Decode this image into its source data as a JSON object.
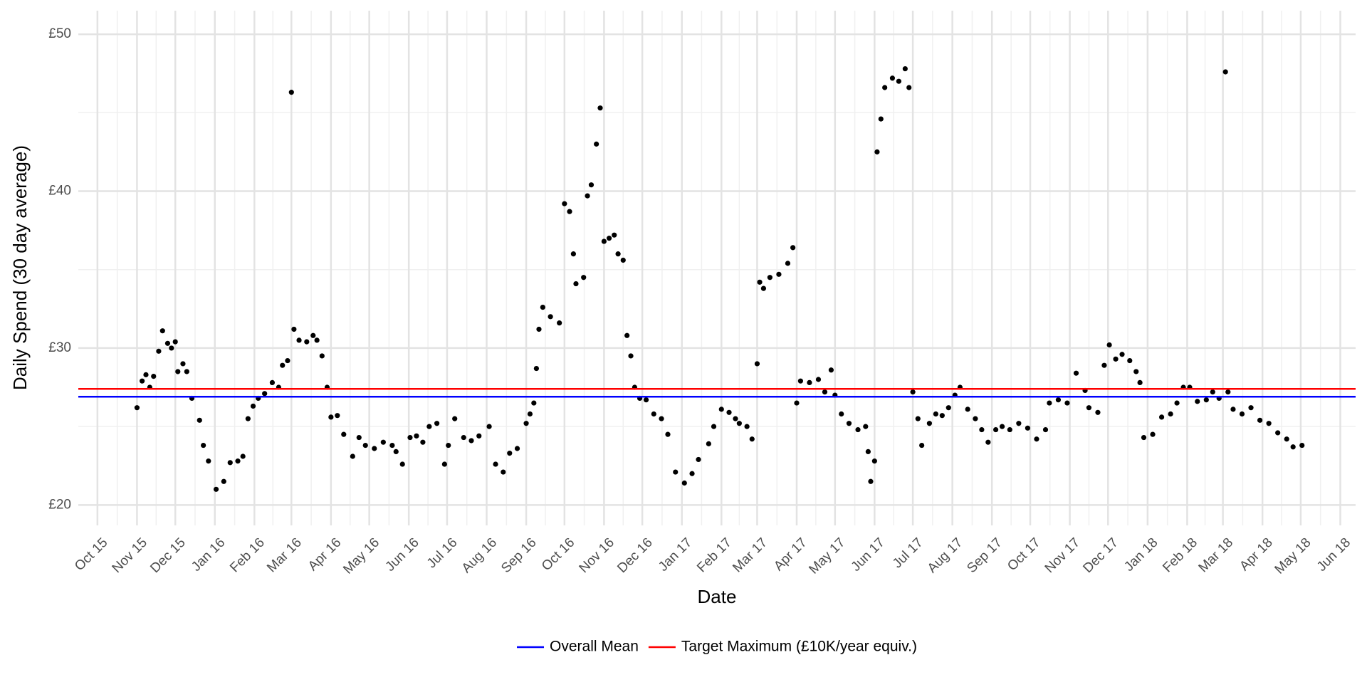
{
  "chart_data": {
    "type": "scatter",
    "x_label": "Date",
    "y_label": "Daily Spend (30 day average)",
    "color": "#000000",
    "grid": true,
    "legend": "bottom",
    "xlim": [
      "2015-09-16",
      "2018-06-13"
    ],
    "xticks": [
      {
        "value": "2015-10-01",
        "label": "Oct 15"
      },
      {
        "value": "2015-11-01",
        "label": "Nov 15"
      },
      {
        "value": "2015-12-01",
        "label": "Dec 15"
      },
      {
        "value": "2016-01-01",
        "label": "Jan 16"
      },
      {
        "value": "2016-02-01",
        "label": "Feb 16"
      },
      {
        "value": "2016-03-01",
        "label": "Mar 16"
      },
      {
        "value": "2016-04-01",
        "label": "Apr 16"
      },
      {
        "value": "2016-05-01",
        "label": "May 16"
      },
      {
        "value": "2016-06-01",
        "label": "Jun 16"
      },
      {
        "value": "2016-07-01",
        "label": "Jul 16"
      },
      {
        "value": "2016-08-01",
        "label": "Aug 16"
      },
      {
        "value": "2016-09-01",
        "label": "Sep 16"
      },
      {
        "value": "2016-10-01",
        "label": "Oct 16"
      },
      {
        "value": "2016-11-01",
        "label": "Nov 16"
      },
      {
        "value": "2016-12-01",
        "label": "Dec 16"
      },
      {
        "value": "2017-01-01",
        "label": "Jan 17"
      },
      {
        "value": "2017-02-01",
        "label": "Feb 17"
      },
      {
        "value": "2017-03-01",
        "label": "Mar 17"
      },
      {
        "value": "2017-04-01",
        "label": "Apr 17"
      },
      {
        "value": "2017-05-01",
        "label": "May 17"
      },
      {
        "value": "2017-06-01",
        "label": "Jun 17"
      },
      {
        "value": "2017-07-01",
        "label": "Jul 17"
      },
      {
        "value": "2017-08-01",
        "label": "Aug 17"
      },
      {
        "value": "2017-09-01",
        "label": "Sep 17"
      },
      {
        "value": "2017-10-01",
        "label": "Oct 17"
      },
      {
        "value": "2017-11-01",
        "label": "Nov 17"
      },
      {
        "value": "2017-12-01",
        "label": "Dec 17"
      },
      {
        "value": "2018-01-01",
        "label": "Jan 18"
      },
      {
        "value": "2018-02-01",
        "label": "Feb 18"
      },
      {
        "value": "2018-03-01",
        "label": "Mar 18"
      },
      {
        "value": "2018-04-01",
        "label": "Apr 18"
      },
      {
        "value": "2018-05-01",
        "label": "May 18"
      },
      {
        "value": "2018-06-01",
        "label": "Jun 18"
      }
    ],
    "ylim": [
      18.7,
      51.5
    ],
    "yticks": [
      {
        "value": 20,
        "label": "£20"
      },
      {
        "value": 30,
        "label": "£30"
      },
      {
        "value": 40,
        "label": "£40"
      },
      {
        "value": 50,
        "label": "£50"
      }
    ],
    "yminor": [
      25,
      35,
      45
    ],
    "hlines": [
      {
        "name": "Overall Mean",
        "color": "#0000ff",
        "value": 26.9
      },
      {
        "name": "Target Maximum (£10K/year equiv.)",
        "color": "#ff0000",
        "value": 27.4
      }
    ],
    "x": [
      "2015-11-01",
      "2015-11-05",
      "2015-11-08",
      "2015-11-11",
      "2015-11-14",
      "2015-11-18",
      "2015-11-21",
      "2015-11-25",
      "2015-11-28",
      "2015-12-01",
      "2015-12-03",
      "2015-12-07",
      "2015-12-10",
      "2015-12-14",
      "2015-12-20",
      "2015-12-23",
      "2015-12-27",
      "2016-01-02",
      "2016-01-08",
      "2016-01-13",
      "2016-01-19",
      "2016-01-23",
      "2016-01-27",
      "2016-01-31",
      "2016-02-04",
      "2016-02-09",
      "2016-02-15",
      "2016-02-20",
      "2016-02-23",
      "2016-02-27",
      "2016-03-01",
      "2016-03-03",
      "2016-03-07",
      "2016-03-13",
      "2016-03-18",
      "2016-03-21",
      "2016-03-25",
      "2016-03-29",
      "2016-04-01",
      "2016-04-06",
      "2016-04-11",
      "2016-04-18",
      "2016-04-23",
      "2016-04-28",
      "2016-05-05",
      "2016-05-12",
      "2016-05-19",
      "2016-05-22",
      "2016-05-27",
      "2016-06-02",
      "2016-06-07",
      "2016-06-12",
      "2016-06-17",
      "2016-06-23",
      "2016-06-29",
      "2016-07-02",
      "2016-07-07",
      "2016-07-14",
      "2016-07-20",
      "2016-07-26",
      "2016-08-03",
      "2016-08-08",
      "2016-08-14",
      "2016-08-19",
      "2016-08-25",
      "2016-09-01",
      "2016-09-04",
      "2016-09-07",
      "2016-09-09",
      "2016-09-11",
      "2016-09-14",
      "2016-09-20",
      "2016-09-27",
      "2016-10-01",
      "2016-10-05",
      "2016-10-08",
      "2016-10-10",
      "2016-10-16",
      "2016-10-19",
      "2016-10-22",
      "2016-10-26",
      "2016-10-29",
      "2016-11-01",
      "2016-11-05",
      "2016-11-09",
      "2016-11-12",
      "2016-11-16",
      "2016-11-19",
      "2016-11-22",
      "2016-11-25",
      "2016-11-29",
      "2016-12-04",
      "2016-12-10",
      "2016-12-16",
      "2016-12-21",
      "2016-12-27",
      "2017-01-03",
      "2017-01-09",
      "2017-01-14",
      "2017-01-22",
      "2017-01-26",
      "2017-02-01",
      "2017-02-07",
      "2017-02-12",
      "2017-02-15",
      "2017-02-21",
      "2017-02-25",
      "2017-03-01",
      "2017-03-03",
      "2017-03-06",
      "2017-03-11",
      "2017-03-18",
      "2017-03-25",
      "2017-03-29",
      "2017-04-01",
      "2017-04-04",
      "2017-04-11",
      "2017-04-18",
      "2017-04-23",
      "2017-04-28",
      "2017-05-01",
      "2017-05-06",
      "2017-05-12",
      "2017-05-19",
      "2017-05-25",
      "2017-05-27",
      "2017-05-29",
      "2017-06-01",
      "2017-06-03",
      "2017-06-06",
      "2017-06-09",
      "2017-06-15",
      "2017-06-20",
      "2017-06-25",
      "2017-06-28",
      "2017-07-01",
      "2017-07-05",
      "2017-07-08",
      "2017-07-14",
      "2017-07-19",
      "2017-07-24",
      "2017-07-29",
      "2017-08-03",
      "2017-08-07",
      "2017-08-13",
      "2017-08-19",
      "2017-08-24",
      "2017-08-29",
      "2017-09-04",
      "2017-09-09",
      "2017-09-15",
      "2017-09-22",
      "2017-09-29",
      "2017-10-06",
      "2017-10-13",
      "2017-10-16",
      "2017-10-23",
      "2017-10-30",
      "2017-11-06",
      "2017-11-13",
      "2017-11-16",
      "2017-11-23",
      "2017-11-28",
      "2017-12-02",
      "2017-12-07",
      "2017-12-12",
      "2017-12-18",
      "2017-12-23",
      "2017-12-26",
      "2017-12-29",
      "2018-01-05",
      "2018-01-12",
      "2018-01-19",
      "2018-01-24",
      "2018-01-29",
      "2018-02-03",
      "2018-02-09",
      "2018-02-16",
      "2018-02-21",
      "2018-02-26",
      "2018-03-03",
      "2018-03-05",
      "2018-03-09",
      "2018-03-16",
      "2018-03-23",
      "2018-03-30",
      "2018-04-06",
      "2018-04-13",
      "2018-04-20",
      "2018-04-25",
      "2018-05-02"
    ],
    "values": [
      26.2,
      27.9,
      28.3,
      27.5,
      28.2,
      29.8,
      31.1,
      30.3,
      30.0,
      30.4,
      28.5,
      29.0,
      28.5,
      26.8,
      25.4,
      23.8,
      22.8,
      21.0,
      21.5,
      22.7,
      22.8,
      23.1,
      25.5,
      26.3,
      26.8,
      27.1,
      27.8,
      27.5,
      28.9,
      29.2,
      46.3,
      31.2,
      30.5,
      30.4,
      30.8,
      30.5,
      29.5,
      27.5,
      25.6,
      25.7,
      24.5,
      23.1,
      24.3,
      23.8,
      23.6,
      24.0,
      23.8,
      23.4,
      22.6,
      24.3,
      24.4,
      24.0,
      25.0,
      25.2,
      22.6,
      23.8,
      25.5,
      24.3,
      24.1,
      24.4,
      25.0,
      22.6,
      22.1,
      23.3,
      23.6,
      25.2,
      25.8,
      26.5,
      28.7,
      31.2,
      32.6,
      32.0,
      31.6,
      39.2,
      38.7,
      36.0,
      34.1,
      34.5,
      39.7,
      40.4,
      43.0,
      45.3,
      36.8,
      37.0,
      37.2,
      36.0,
      35.6,
      30.8,
      29.5,
      27.5,
      26.8,
      26.7,
      25.8,
      25.5,
      24.5,
      22.1,
      21.4,
      22.0,
      22.9,
      23.9,
      25.0,
      26.1,
      25.9,
      25.5,
      25.2,
      25.0,
      24.2,
      29.0,
      34.2,
      33.8,
      34.5,
      34.7,
      35.4,
      36.4,
      26.5,
      27.9,
      27.8,
      28.0,
      27.2,
      28.6,
      27.0,
      25.8,
      25.2,
      24.8,
      25.0,
      23.4,
      21.5,
      22.8,
      42.5,
      44.6,
      46.6,
      47.2,
      47.0,
      47.8,
      46.6,
      27.2,
      25.5,
      23.8,
      25.2,
      25.8,
      25.7,
      26.2,
      27.0,
      27.5,
      26.1,
      25.5,
      24.8,
      24.0,
      24.8,
      25.0,
      24.8,
      25.2,
      24.9,
      24.2,
      24.8,
      26.5,
      26.7,
      26.5,
      28.4,
      27.3,
      26.2,
      25.9,
      28.9,
      30.2,
      29.3,
      29.6,
      29.2,
      28.5,
      27.8,
      24.3,
      24.5,
      25.6,
      25.8,
      26.5,
      27.5,
      27.5,
      26.6,
      26.7,
      27.2,
      26.8,
      47.6,
      27.2,
      26.1,
      25.8,
      26.2,
      25.4,
      25.2,
      24.6,
      24.2,
      23.7,
      23.8
    ]
  }
}
